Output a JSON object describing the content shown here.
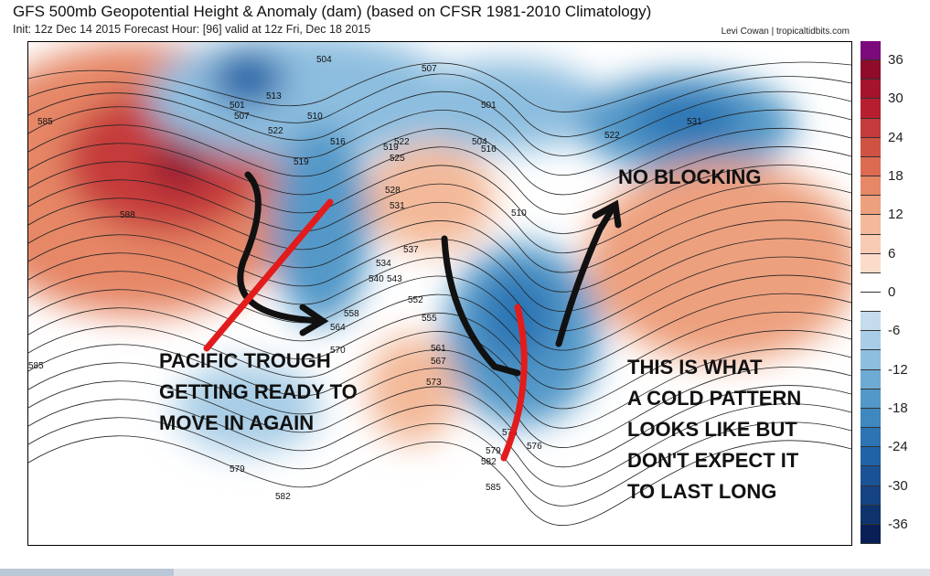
{
  "header": {
    "title": "GFS 500mb Geopotential Height & Anomaly (dam) (based on CFSR 1981-2010 Climatology)",
    "subtitle": "Init: 12z Dec 14 2015   Forecast Hour: [96]   valid at 12z Fri, Dec 18 2015",
    "credit": "Levi Cowan | tropicaltidbits.com"
  },
  "colorbar": {
    "labels": [
      "36",
      "30",
      "24",
      "18",
      "12",
      "6",
      "0",
      "-6",
      "-12",
      "-18",
      "-24",
      "-30",
      "-36"
    ],
    "range": [
      -39,
      39
    ],
    "step": 3,
    "colors": [
      "#7b0a7b",
      "#8e0c2a",
      "#a5142c",
      "#b71f30",
      "#c53a3a",
      "#d05243",
      "#dc6b52",
      "#e68766",
      "#eda07e",
      "#f3b99a",
      "#f7cbb4",
      "#fbdccb",
      "#ffffff",
      "#ffffff",
      "#c5dcec",
      "#a9cde6",
      "#8dbedf",
      "#6eabd4",
      "#5398c8",
      "#3e87bf",
      "#2c74b4",
      "#2163a6",
      "#1b5295",
      "#154283",
      "#0f336d",
      "#0a1f56"
    ]
  },
  "contour_labels": [
    "585",
    "588",
    "504",
    "501",
    "507",
    "513",
    "510",
    "516",
    "522",
    "519",
    "507",
    "501",
    "504",
    "516",
    "519",
    "525",
    "528",
    "531",
    "522",
    "510",
    "531",
    "522",
    "537",
    "534",
    "540",
    "543",
    "552",
    "555",
    "558",
    "564",
    "570",
    "561",
    "567",
    "573",
    "576",
    "579",
    "582",
    "585",
    "585",
    "582",
    "579",
    "576"
  ],
  "annotations": {
    "pacific": [
      "PACIFIC TROUGH",
      "GETTING READY TO",
      "MOVE IN AGAIN"
    ],
    "blocking": "NO BLOCKING",
    "cold": [
      "THIS IS WHAT",
      "A COLD PATTERN",
      "LOOKS LIKE BUT",
      "DON'T EXPECT IT",
      "TO LAST LONG"
    ]
  }
}
